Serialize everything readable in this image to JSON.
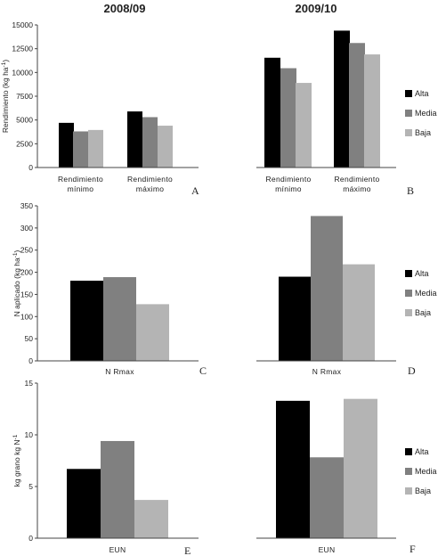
{
  "column_titles": [
    "2008/09",
    "2009/10"
  ],
  "legend": [
    {
      "label": "Alta",
      "color": "#000000"
    },
    {
      "label": "Media",
      "color": "#808080"
    },
    {
      "label": "Baja",
      "color": "#b4b4b4"
    }
  ],
  "chart_data": [
    {
      "type": "bar",
      "panel": "A",
      "title": "2008/09",
      "ylabel": "Rendimiento (kg ha-1)",
      "categories": [
        [
          "Rendimiento",
          "mínimo"
        ],
        [
          "Rendimiento",
          "máximo"
        ]
      ],
      "ylim": [
        0,
        15000
      ],
      "yticks": [
        0,
        2500,
        5000,
        7500,
        10000,
        12500,
        15000
      ],
      "series": [
        {
          "name": "Alta",
          "values": [
            4700,
            5900
          ]
        },
        {
          "name": "Media",
          "values": [
            3800,
            5300
          ]
        },
        {
          "name": "Baja",
          "values": [
            3950,
            4400
          ]
        }
      ]
    },
    {
      "type": "bar",
      "panel": "B",
      "title": "2009/10",
      "categories": [
        [
          "Rendimiento",
          "mínimo"
        ],
        [
          "Rendimiento",
          "máximo"
        ]
      ],
      "ylim": [
        0,
        15000
      ],
      "series": [
        {
          "name": "Alta",
          "values": [
            11550,
            14400
          ]
        },
        {
          "name": "Media",
          "values": [
            10450,
            13100
          ]
        },
        {
          "name": "Baja",
          "values": [
            8900,
            11900
          ]
        }
      ]
    },
    {
      "type": "bar",
      "panel": "C",
      "ylabel": "N aplicado (kg ha-1)",
      "categories": [
        [
          "N Rmax"
        ]
      ],
      "ylim": [
        0,
        350
      ],
      "yticks": [
        0,
        50,
        100,
        150,
        200,
        250,
        300,
        350
      ],
      "series": [
        {
          "name": "Alta",
          "values": [
            181
          ]
        },
        {
          "name": "Media",
          "values": [
            189
          ]
        },
        {
          "name": "Baja",
          "values": [
            128
          ]
        }
      ]
    },
    {
      "type": "bar",
      "panel": "D",
      "categories": [
        [
          "N Rmax"
        ]
      ],
      "ylim": [
        0,
        350
      ],
      "series": [
        {
          "name": "Alta",
          "values": [
            190
          ]
        },
        {
          "name": "Media",
          "values": [
            327
          ]
        },
        {
          "name": "Baja",
          "values": [
            218
          ]
        }
      ]
    },
    {
      "type": "bar",
      "panel": "E",
      "ylabel": "kg grano kg N-1",
      "categories": [
        [
          "EUN"
        ]
      ],
      "ylim": [
        0,
        15
      ],
      "yticks": [
        0,
        5,
        10,
        15
      ],
      "series": [
        {
          "name": "Alta",
          "values": [
            6.7
          ]
        },
        {
          "name": "Media",
          "values": [
            9.4
          ]
        },
        {
          "name": "Baja",
          "values": [
            3.7
          ]
        }
      ]
    },
    {
      "type": "bar",
      "panel": "F",
      "categories": [
        [
          "EUN"
        ]
      ],
      "ylim": [
        0,
        15
      ],
      "series": [
        {
          "name": "Alta",
          "values": [
            14.1
          ]
        },
        {
          "name": "Media",
          "values": [
            8.3
          ]
        },
        {
          "name": "Baja",
          "values": [
            14.3
          ]
        }
      ]
    }
  ]
}
